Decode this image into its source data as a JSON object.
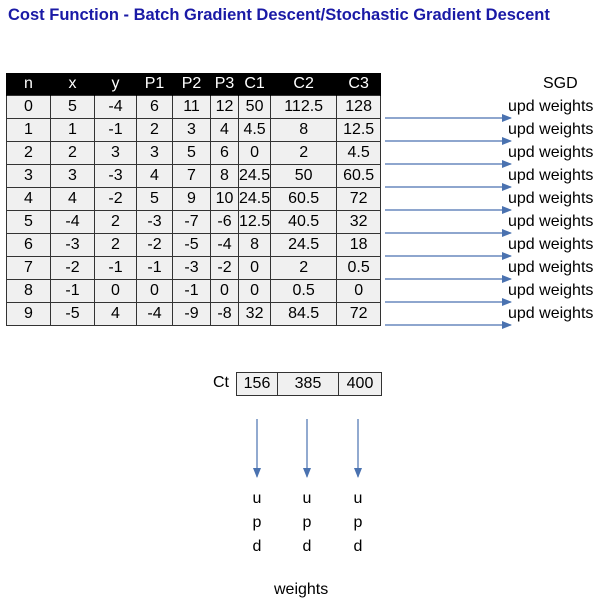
{
  "title": "Cost Function - Batch Gradient Descent/Stochastic Gradient Descent",
  "table": {
    "headers": [
      "n",
      "x",
      "y",
      "P1",
      "P2",
      "P3",
      "C1",
      "C2",
      "C3"
    ],
    "rows": [
      [
        "0",
        "5",
        "-4",
        "6",
        "11",
        "12",
        "50",
        "112.5",
        "128"
      ],
      [
        "1",
        "1",
        "-1",
        "2",
        "3",
        "4",
        "4.5",
        "8",
        "12.5"
      ],
      [
        "2",
        "2",
        "3",
        "3",
        "5",
        "6",
        "0",
        "2",
        "4.5"
      ],
      [
        "3",
        "3",
        "-3",
        "4",
        "7",
        "8",
        "24.5",
        "50",
        "60.5"
      ],
      [
        "4",
        "4",
        "-2",
        "5",
        "9",
        "10",
        "24.5",
        "60.5",
        "72"
      ],
      [
        "5",
        "-4",
        "2",
        "-3",
        "-7",
        "-6",
        "12.5",
        "40.5",
        "32"
      ],
      [
        "6",
        "-3",
        "2",
        "-2",
        "-5",
        "-4",
        "8",
        "24.5",
        "18"
      ],
      [
        "7",
        "-2",
        "-1",
        "-1",
        "-3",
        "-2",
        "0",
        "2",
        "0.5"
      ],
      [
        "8",
        "-1",
        "0",
        "0",
        "-1",
        "0",
        "0",
        "0.5",
        "0"
      ],
      [
        "9",
        "-5",
        "4",
        "-4",
        "-9",
        "-8",
        "32",
        "84.5",
        "72"
      ]
    ]
  },
  "sgd": {
    "header": "SGD",
    "labels": [
      "upd weights",
      "upd weights",
      "upd weights",
      "upd weights",
      "upd weights",
      "upd weights",
      "upd weights",
      "upd weights",
      "upd weights",
      "upd weights"
    ]
  },
  "ct": {
    "label": "Ct",
    "values": [
      "156",
      "385",
      "400"
    ]
  },
  "batch": {
    "upd_letters": [
      "u",
      "p",
      "d"
    ],
    "weights_label": "weights"
  },
  "colors": {
    "title": "#1a1aa6",
    "arrow": "#4a72b0",
    "header_bg": "#000000",
    "cell_bg": "#f0f0f0"
  }
}
